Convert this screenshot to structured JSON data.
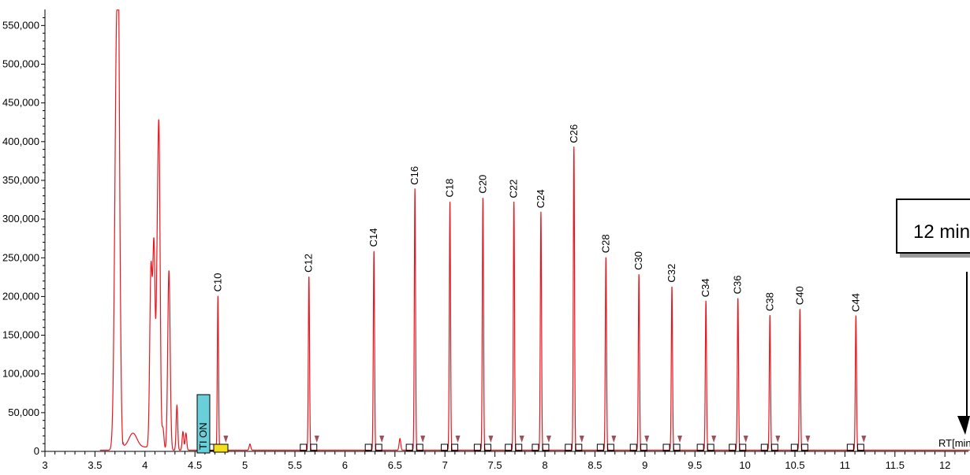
{
  "chart_data": {
    "type": "line",
    "xlabel": "RT[min]",
    "x_ticks": [
      3,
      3.5,
      4,
      4.5,
      5,
      5.5,
      6,
      6.5,
      7,
      7.5,
      8,
      8.5,
      9,
      9.5,
      10,
      10.5,
      11,
      11.5,
      12
    ],
    "x_tick_labels": [
      "3",
      "3.5",
      "4",
      "4.5",
      "5",
      "5.5",
      "6",
      "6.5",
      "7",
      "7.5",
      "8",
      "8.5",
      "9",
      "9.5",
      "10",
      "10.5",
      "11",
      "11.5",
      "12"
    ],
    "y_ticks": [
      0,
      50000,
      100000,
      150000,
      200000,
      250000,
      300000,
      350000,
      400000,
      450000,
      500000,
      550000
    ],
    "y_tick_labels": [
      "0",
      "50,000",
      "100,000",
      "150,000",
      "200,000",
      "250,000",
      "300,000",
      "350,000",
      "400,000",
      "450,000",
      "500,000",
      "550,000"
    ],
    "xlim": [
      2.97,
      12.25
    ],
    "ylim": [
      0,
      570000
    ],
    "line_color": "#e8161e",
    "solvent_peaks": [
      {
        "x": 3.72,
        "y": 570000,
        "w": 0.02
      },
      {
        "x": 3.88,
        "y": 18000,
        "w": 0.04
      },
      {
        "x": 4.06,
        "y": 230000,
        "w": 0.012
      },
      {
        "x": 4.09,
        "y": 262000,
        "w": 0.012
      },
      {
        "x": 4.12,
        "y": 150000,
        "w": 0.01
      },
      {
        "x": 4.14,
        "y": 403000,
        "w": 0.012
      },
      {
        "x": 4.18,
        "y": 28000,
        "w": 0.01
      },
      {
        "x": 4.24,
        "y": 232000,
        "w": 0.012
      },
      {
        "x": 4.32,
        "y": 58000,
        "w": 0.008
      },
      {
        "x": 4.38,
        "y": 24000,
        "w": 0.008
      },
      {
        "x": 4.41,
        "y": 22000,
        "w": 0.008
      },
      {
        "x": 5.05,
        "y": 8000,
        "w": 0.008
      },
      {
        "x": 6.55,
        "y": 15000,
        "w": 0.008
      }
    ],
    "peaks": [
      {
        "label": "C10",
        "x": 4.73,
        "y": 200000
      },
      {
        "label": "C12",
        "x": 5.64,
        "y": 225000
      },
      {
        "label": "C14",
        "x": 6.29,
        "y": 258000
      },
      {
        "label": "C16",
        "x": 6.7,
        "y": 338000
      },
      {
        "label": "C18",
        "x": 7.05,
        "y": 322000
      },
      {
        "label": "C20",
        "x": 7.38,
        "y": 327000
      },
      {
        "label": "C22",
        "x": 7.69,
        "y": 321000
      },
      {
        "label": "C24",
        "x": 7.96,
        "y": 308000
      },
      {
        "label": "C26",
        "x": 8.29,
        "y": 392000
      },
      {
        "label": "C28",
        "x": 8.61,
        "y": 250000
      },
      {
        "label": "C30",
        "x": 8.94,
        "y": 228000
      },
      {
        "label": "C32",
        "x": 9.27,
        "y": 212000
      },
      {
        "label": "C34",
        "x": 9.61,
        "y": 193000
      },
      {
        "label": "C36",
        "x": 9.93,
        "y": 197000
      },
      {
        "label": "C38",
        "x": 10.25,
        "y": 175000
      },
      {
        "label": "C40",
        "x": 10.55,
        "y": 183000
      },
      {
        "label": "C44",
        "x": 11.11,
        "y": 174000
      }
    ],
    "annotations": {
      "tion_label": "TI ON",
      "callout": "12 min"
    }
  }
}
